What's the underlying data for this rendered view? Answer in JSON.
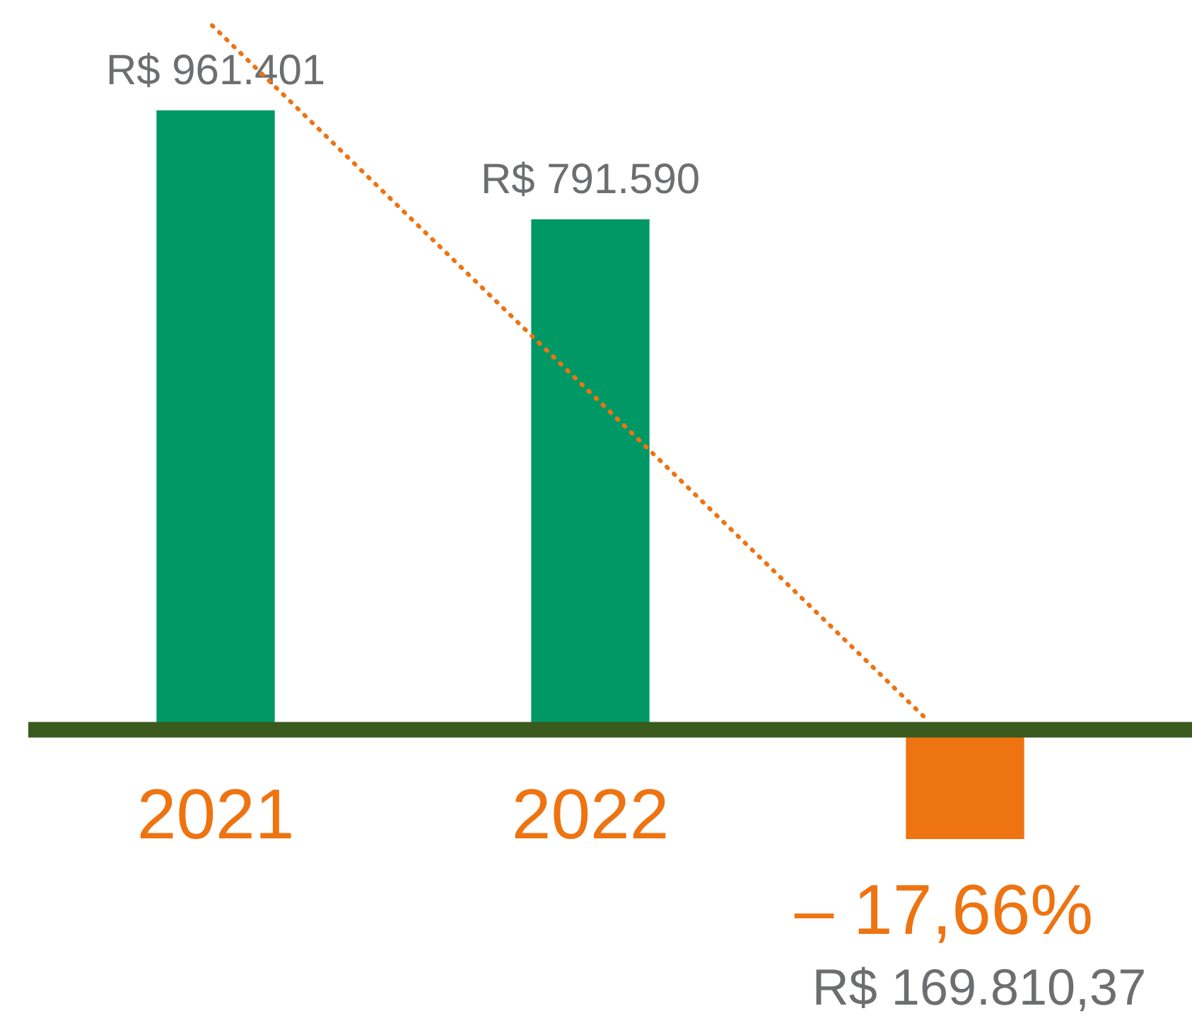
{
  "chart_data": {
    "type": "bar",
    "categories": [
      "2021",
      "2022",
      "– 17,66%"
    ],
    "values": [
      961401,
      791590,
      -169810.37
    ],
    "colors": [
      "#009966",
      "#009966",
      "#ee7311"
    ],
    "value_labels": [
      "R$ 961.401",
      "R$ 791.590",
      "R$ 169.810,37"
    ],
    "legend": false
  }
}
